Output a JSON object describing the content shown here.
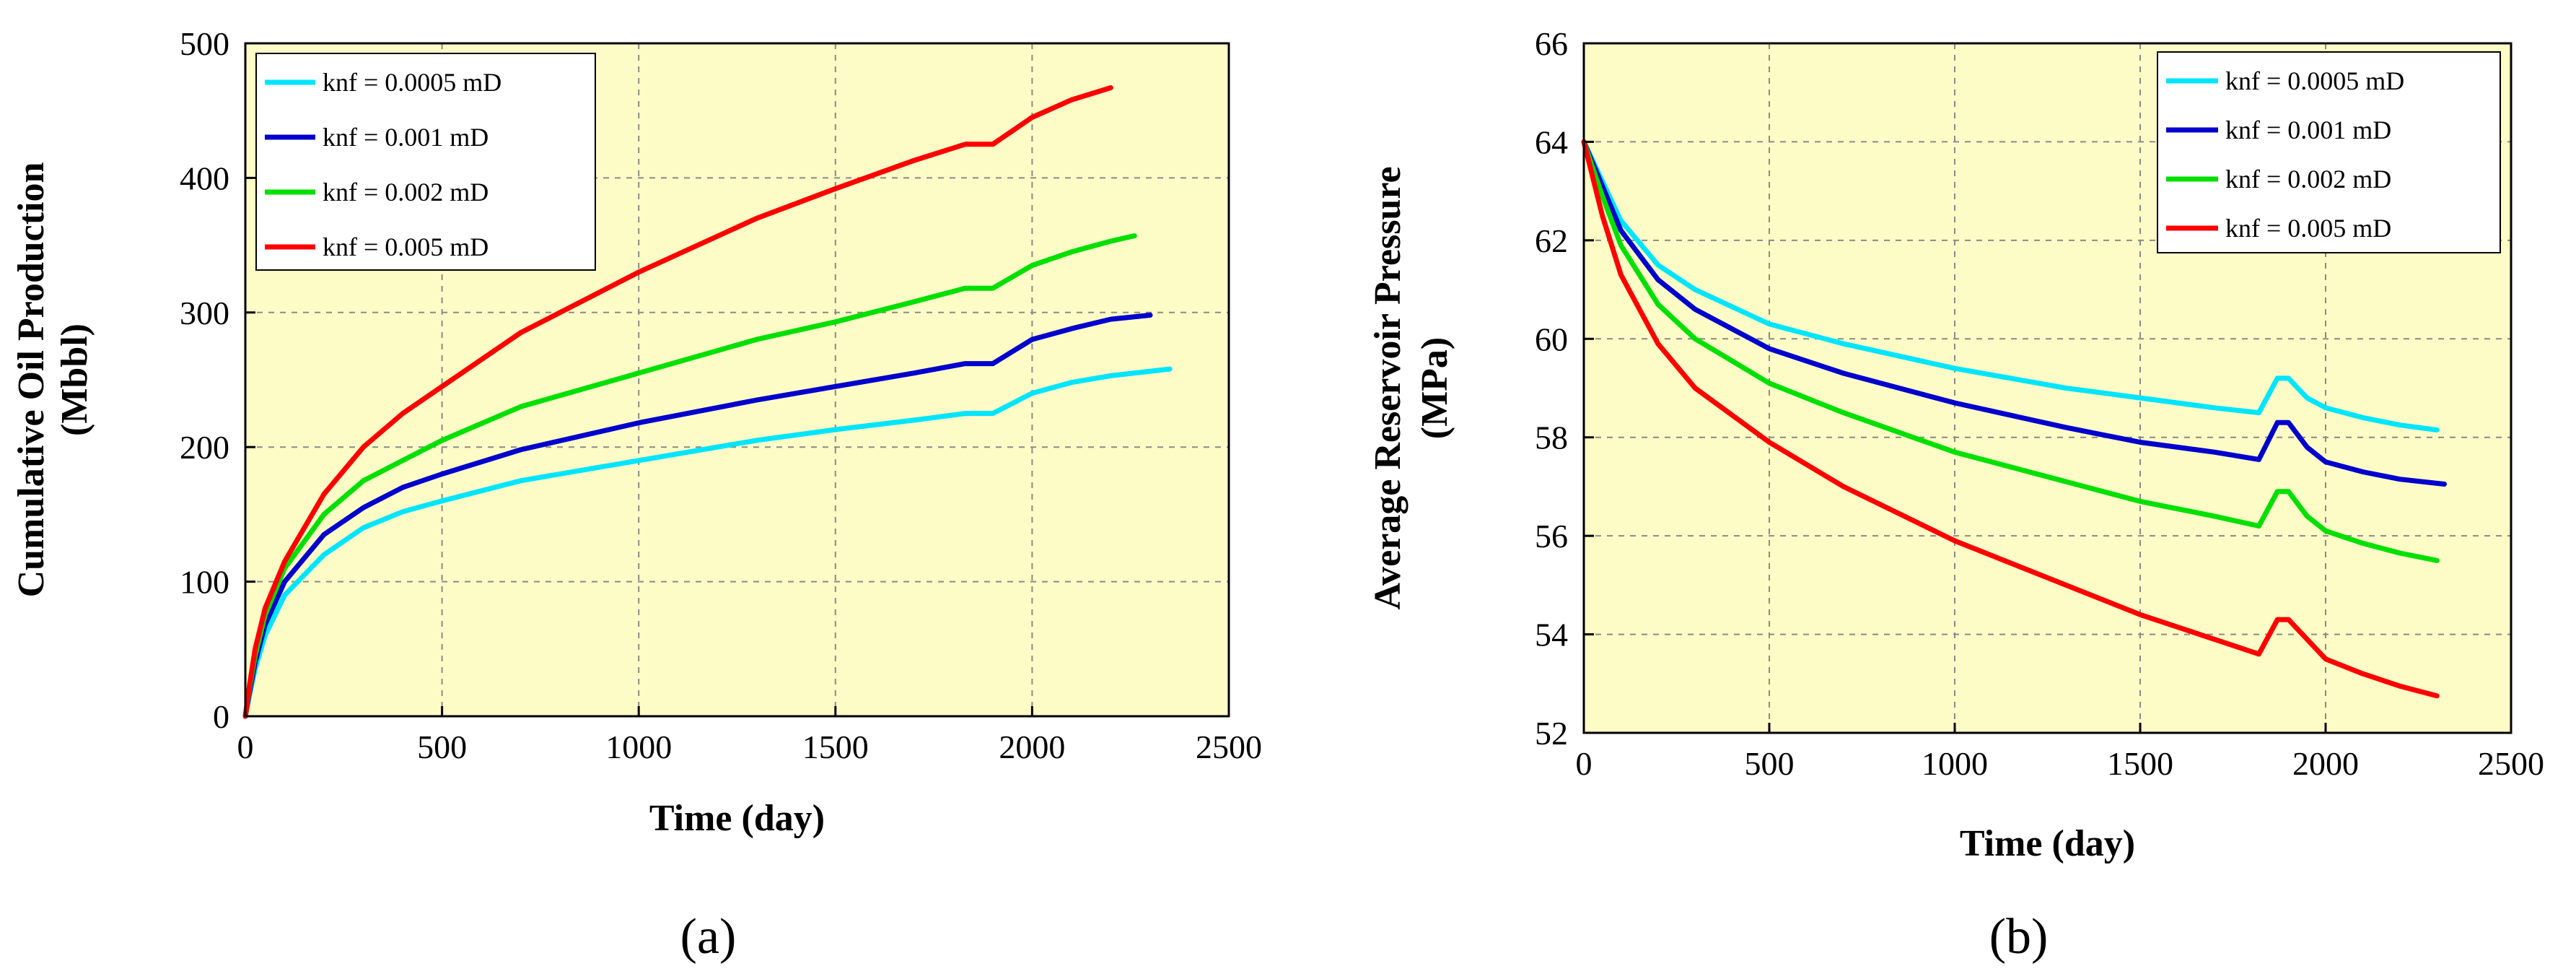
{
  "chart_data": [
    {
      "type": "line",
      "panel_label": "(a)",
      "xlabel": "Time (day)",
      "ylabel": [
        "Cumulative Oil Production",
        "(Mbbl)"
      ],
      "xlim": [
        0,
        2500
      ],
      "ylim": [
        0,
        500
      ],
      "xticks": [
        0,
        500,
        1000,
        1500,
        2000,
        2500
      ],
      "yticks": [
        0,
        100,
        200,
        300,
        400,
        500
      ],
      "grid": true,
      "legend_position": "top-left",
      "plot_background": "#fdfcc6",
      "series": [
        {
          "name": "knf = 0.0005 mD",
          "color": "#00e5ff",
          "points": [
            [
              0,
              0
            ],
            [
              10,
              15
            ],
            [
              25,
              35
            ],
            [
              50,
              60
            ],
            [
              100,
              90
            ],
            [
              200,
              120
            ],
            [
              300,
              140
            ],
            [
              400,
              152
            ],
            [
              500,
              160
            ],
            [
              700,
              175
            ],
            [
              1000,
              190
            ],
            [
              1300,
              205
            ],
            [
              1500,
              213
            ],
            [
              1700,
              220
            ],
            [
              1830,
              225
            ],
            [
              1900,
              225
            ],
            [
              2000,
              240
            ],
            [
              2100,
              248
            ],
            [
              2200,
              253
            ],
            [
              2350,
              258
            ]
          ]
        },
        {
          "name": "knf = 0.001 mD",
          "color": "#0000cc",
          "points": [
            [
              0,
              0
            ],
            [
              10,
              17
            ],
            [
              25,
              40
            ],
            [
              50,
              68
            ],
            [
              100,
              100
            ],
            [
              200,
              135
            ],
            [
              300,
              155
            ],
            [
              400,
              170
            ],
            [
              500,
              180
            ],
            [
              700,
              198
            ],
            [
              1000,
              218
            ],
            [
              1300,
              235
            ],
            [
              1500,
              245
            ],
            [
              1700,
              255
            ],
            [
              1830,
              262
            ],
            [
              1900,
              262
            ],
            [
              2000,
              280
            ],
            [
              2100,
              288
            ],
            [
              2200,
              295
            ],
            [
              2300,
              298
            ]
          ]
        },
        {
          "name": "knf = 0.002 mD",
          "color": "#00e000",
          "points": [
            [
              0,
              0
            ],
            [
              10,
              20
            ],
            [
              25,
              45
            ],
            [
              50,
              75
            ],
            [
              100,
              110
            ],
            [
              200,
              150
            ],
            [
              300,
              175
            ],
            [
              400,
              190
            ],
            [
              500,
              205
            ],
            [
              700,
              230
            ],
            [
              1000,
              255
            ],
            [
              1300,
              280
            ],
            [
              1500,
              293
            ],
            [
              1700,
              308
            ],
            [
              1830,
              318
            ],
            [
              1900,
              318
            ],
            [
              2000,
              335
            ],
            [
              2100,
              345
            ],
            [
              2200,
              353
            ],
            [
              2260,
              357
            ]
          ]
        },
        {
          "name": "knf = 0.005 mD",
          "color": "#ff0000",
          "points": [
            [
              0,
              0
            ],
            [
              10,
              22
            ],
            [
              25,
              50
            ],
            [
              50,
              80
            ],
            [
              100,
              115
            ],
            [
              200,
              165
            ],
            [
              300,
              200
            ],
            [
              400,
              225
            ],
            [
              500,
              245
            ],
            [
              700,
              285
            ],
            [
              1000,
              330
            ],
            [
              1300,
              370
            ],
            [
              1500,
              392
            ],
            [
              1700,
              413
            ],
            [
              1830,
              425
            ],
            [
              1900,
              425
            ],
            [
              2000,
              445
            ],
            [
              2100,
              458
            ],
            [
              2200,
              467
            ]
          ]
        }
      ]
    },
    {
      "type": "line",
      "panel_label": "(b)",
      "xlabel": "Time (day)",
      "ylabel": [
        "Average Reservoir Pressure",
        "(MPa)"
      ],
      "xlim": [
        0,
        2500
      ],
      "ylim": [
        52,
        66
      ],
      "xticks": [
        0,
        500,
        1000,
        1500,
        2000,
        2500
      ],
      "yticks": [
        52,
        54,
        56,
        58,
        60,
        62,
        64,
        66
      ],
      "grid": true,
      "legend_position": "top-right",
      "plot_background": "#fdfcc6",
      "series": [
        {
          "name": "knf = 0.0005 mD",
          "color": "#00e5ff",
          "points": [
            [
              0,
              64
            ],
            [
              50,
              63.2
            ],
            [
              100,
              62.4
            ],
            [
              200,
              61.5
            ],
            [
              300,
              61.0
            ],
            [
              500,
              60.3
            ],
            [
              700,
              59.9
            ],
            [
              1000,
              59.4
            ],
            [
              1300,
              59.0
            ],
            [
              1500,
              58.8
            ],
            [
              1700,
              58.6
            ],
            [
              1820,
              58.5
            ],
            [
              1870,
              59.2
            ],
            [
              1900,
              59.2
            ],
            [
              1950,
              58.8
            ],
            [
              2000,
              58.6
            ],
            [
              2100,
              58.4
            ],
            [
              2200,
              58.25
            ],
            [
              2300,
              58.15
            ]
          ]
        },
        {
          "name": "knf = 0.001 mD",
          "color": "#0000cc",
          "points": [
            [
              0,
              64
            ],
            [
              50,
              63.1
            ],
            [
              100,
              62.2
            ],
            [
              200,
              61.2
            ],
            [
              300,
              60.6
            ],
            [
              500,
              59.8
            ],
            [
              700,
              59.3
            ],
            [
              1000,
              58.7
            ],
            [
              1300,
              58.2
            ],
            [
              1500,
              57.9
            ],
            [
              1700,
              57.7
            ],
            [
              1820,
              57.55
            ],
            [
              1870,
              58.3
            ],
            [
              1900,
              58.3
            ],
            [
              1950,
              57.8
            ],
            [
              2000,
              57.5
            ],
            [
              2100,
              57.3
            ],
            [
              2200,
              57.15
            ],
            [
              2320,
              57.05
            ]
          ]
        },
        {
          "name": "knf = 0.002 mD",
          "color": "#00e000",
          "points": [
            [
              0,
              64
            ],
            [
              50,
              62.9
            ],
            [
              100,
              61.9
            ],
            [
              200,
              60.7
            ],
            [
              300,
              60.0
            ],
            [
              500,
              59.1
            ],
            [
              700,
              58.5
            ],
            [
              1000,
              57.7
            ],
            [
              1300,
              57.1
            ],
            [
              1500,
              56.7
            ],
            [
              1700,
              56.4
            ],
            [
              1820,
              56.2
            ],
            [
              1870,
              56.9
            ],
            [
              1900,
              56.9
            ],
            [
              1950,
              56.4
            ],
            [
              2000,
              56.1
            ],
            [
              2100,
              55.85
            ],
            [
              2200,
              55.65
            ],
            [
              2300,
              55.5
            ]
          ]
        },
        {
          "name": "knf = 0.005 mD",
          "color": "#ff0000",
          "points": [
            [
              0,
              64
            ],
            [
              50,
              62.5
            ],
            [
              100,
              61.3
            ],
            [
              200,
              59.9
            ],
            [
              300,
              59.0
            ],
            [
              500,
              57.9
            ],
            [
              700,
              57.0
            ],
            [
              1000,
              55.9
            ],
            [
              1300,
              55.0
            ],
            [
              1500,
              54.4
            ],
            [
              1700,
              53.9
            ],
            [
              1820,
              53.6
            ],
            [
              1870,
              54.3
            ],
            [
              1900,
              54.3
            ],
            [
              1950,
              53.9
            ],
            [
              2000,
              53.5
            ],
            [
              2100,
              53.2
            ],
            [
              2200,
              52.95
            ],
            [
              2300,
              52.75
            ]
          ]
        }
      ]
    }
  ]
}
